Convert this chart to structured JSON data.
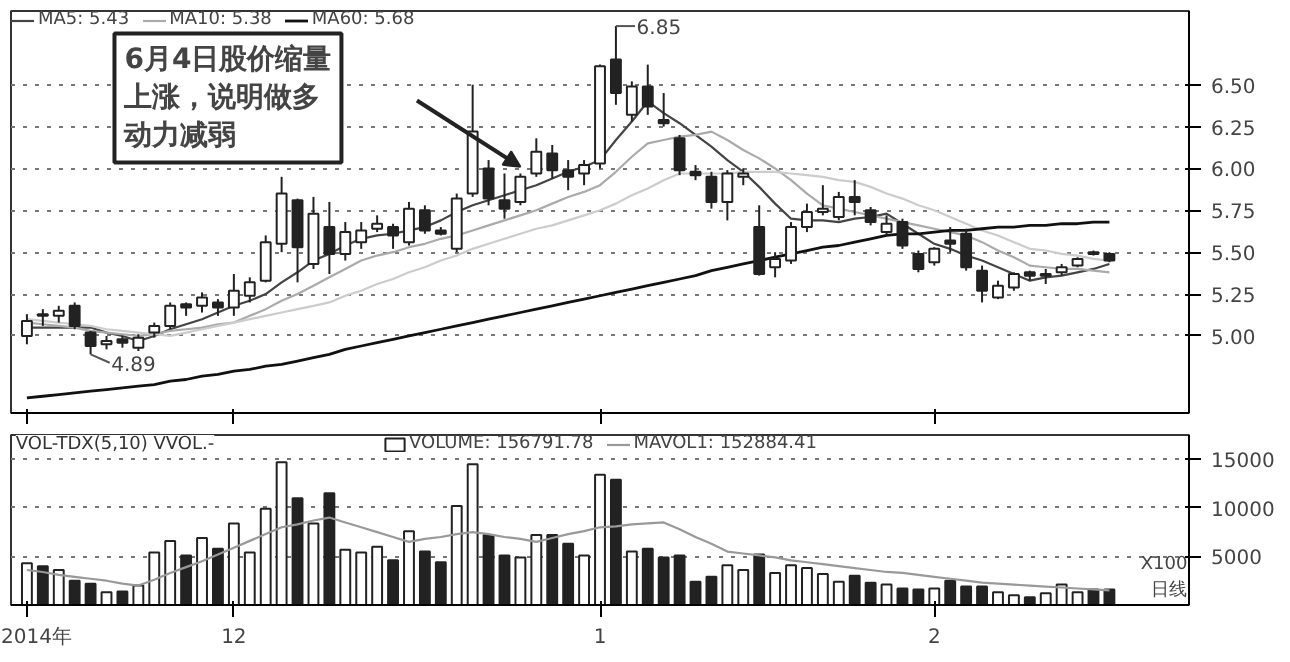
{
  "chart_data": [
    {
      "type": "candlestick",
      "ohlc": [
        [
          5.0,
          5.13,
          4.95,
          5.09
        ],
        [
          5.13,
          5.16,
          5.06,
          5.12
        ],
        [
          5.12,
          5.18,
          5.08,
          5.15
        ],
        [
          5.18,
          5.2,
          5.04,
          5.06
        ],
        [
          5.02,
          5.03,
          4.89,
          4.94
        ],
        [
          4.95,
          5.0,
          4.92,
          4.97
        ],
        [
          4.98,
          5.0,
          4.93,
          4.96
        ],
        [
          4.93,
          5.01,
          4.91,
          4.99
        ],
        [
          5.02,
          5.08,
          4.99,
          5.06
        ],
        [
          5.06,
          5.2,
          5.04,
          5.18
        ],
        [
          5.19,
          5.2,
          5.12,
          5.17
        ],
        [
          5.18,
          5.26,
          5.14,
          5.23
        ],
        [
          5.2,
          5.22,
          5.12,
          5.17
        ],
        [
          5.17,
          5.37,
          5.12,
          5.27
        ],
        [
          5.24,
          5.35,
          5.2,
          5.32
        ],
        [
          5.33,
          5.6,
          5.32,
          5.56
        ],
        [
          5.55,
          5.95,
          5.5,
          5.85
        ],
        [
          5.81,
          5.82,
          5.32,
          5.53
        ],
        [
          5.43,
          5.83,
          5.4,
          5.73
        ],
        [
          5.65,
          5.8,
          5.37,
          5.49
        ],
        [
          5.49,
          5.68,
          5.45,
          5.62
        ],
        [
          5.56,
          5.68,
          5.52,
          5.63
        ],
        [
          5.64,
          5.72,
          5.62,
          5.67
        ],
        [
          5.65,
          5.67,
          5.52,
          5.6
        ],
        [
          5.56,
          5.8,
          5.54,
          5.76
        ],
        [
          5.75,
          5.78,
          5.61,
          5.63
        ],
        [
          5.63,
          5.65,
          5.6,
          5.61
        ],
        [
          5.52,
          5.85,
          5.5,
          5.82
        ],
        [
          5.85,
          6.5,
          5.83,
          6.22
        ],
        [
          6.0,
          6.05,
          5.78,
          5.82
        ],
        [
          5.81,
          5.97,
          5.7,
          5.76
        ],
        [
          5.8,
          5.97,
          5.78,
          5.95
        ],
        [
          5.97,
          6.18,
          5.95,
          6.1
        ],
        [
          6.09,
          6.14,
          5.94,
          5.99
        ],
        [
          5.99,
          6.05,
          5.87,
          5.95
        ],
        [
          5.97,
          6.05,
          5.9,
          6.02
        ],
        [
          6.03,
          6.62,
          6.0,
          6.61
        ],
        [
          6.65,
          6.85,
          6.38,
          6.45
        ],
        [
          6.32,
          6.52,
          6.28,
          6.49
        ],
        [
          6.49,
          6.62,
          6.32,
          6.37
        ],
        [
          6.29,
          6.45,
          6.25,
          6.27
        ],
        [
          6.18,
          6.2,
          5.96,
          5.99
        ],
        [
          5.98,
          6.02,
          5.93,
          5.96
        ],
        [
          5.95,
          5.98,
          5.76,
          5.8
        ],
        [
          5.8,
          5.99,
          5.69,
          5.97
        ],
        [
          5.95,
          6.0,
          5.9,
          5.97
        ],
        [
          5.65,
          5.78,
          5.36,
          5.37
        ],
        [
          5.41,
          5.5,
          5.35,
          5.46
        ],
        [
          5.45,
          5.68,
          5.43,
          5.65
        ],
        [
          5.65,
          5.79,
          5.62,
          5.74
        ],
        [
          5.74,
          5.9,
          5.72,
          5.76
        ],
        [
          5.71,
          5.86,
          5.69,
          5.83
        ],
        [
          5.83,
          5.93,
          5.72,
          5.8
        ],
        [
          5.75,
          5.77,
          5.66,
          5.68
        ],
        [
          5.62,
          5.72,
          5.6,
          5.67
        ],
        [
          5.68,
          5.7,
          5.52,
          5.54
        ],
        [
          5.49,
          5.51,
          5.38,
          5.4
        ],
        [
          5.44,
          5.53,
          5.42,
          5.52
        ],
        [
          5.57,
          5.65,
          5.5,
          5.55
        ],
        [
          5.61,
          5.64,
          5.39,
          5.41
        ],
        [
          5.39,
          5.42,
          5.2,
          5.27
        ],
        [
          5.23,
          5.33,
          5.22,
          5.3
        ],
        [
          5.29,
          5.38,
          5.27,
          5.37
        ],
        [
          5.38,
          5.39,
          5.33,
          5.36
        ],
        [
          5.36,
          5.4,
          5.31,
          5.37
        ],
        [
          5.38,
          5.43,
          5.36,
          5.41
        ],
        [
          5.42,
          5.47,
          5.41,
          5.46
        ],
        [
          5.5,
          5.51,
          5.48,
          5.49
        ],
        [
          5.49,
          5.5,
          5.44,
          5.45
        ]
      ],
      "series": [
        {
          "name": "MA5: 5.43",
          "type": "line",
          "color": "#444444",
          "values": [
            5.05,
            5.05,
            5.05,
            5.05,
            5.05,
            5.02,
            5.0,
            4.97,
            5.0,
            5.04,
            5.07,
            5.1,
            5.14,
            5.18,
            5.21,
            5.25,
            5.32,
            5.38,
            5.45,
            5.49,
            5.54,
            5.58,
            5.6,
            5.61,
            5.63,
            5.65,
            5.69,
            5.74,
            5.78,
            5.81,
            5.84,
            5.87,
            5.9,
            5.94,
            5.98,
            6.01,
            6.05,
            6.17,
            6.28,
            6.4,
            6.33,
            6.27,
            6.2,
            6.13,
            6.05,
            5.98,
            5.89,
            5.79,
            5.7,
            5.69,
            5.69,
            5.68,
            5.7,
            5.71,
            5.73,
            5.67,
            5.61,
            5.55,
            5.52,
            5.48,
            5.45,
            5.41,
            5.37,
            5.33,
            5.35,
            5.36,
            5.38,
            5.4,
            5.43
          ]
        },
        {
          "name": "MA10: 5.38",
          "type": "line",
          "color": "#aaaaaa",
          "values": [
            5.08,
            5.07,
            5.06,
            5.05,
            5.03,
            5.02,
            5.01,
            5.0,
            5.01,
            5.03,
            5.04,
            5.05,
            5.07,
            5.08,
            5.12,
            5.16,
            5.21,
            5.25,
            5.3,
            5.35,
            5.4,
            5.45,
            5.48,
            5.5,
            5.53,
            5.55,
            5.58,
            5.6,
            5.63,
            5.66,
            5.69,
            5.72,
            5.75,
            5.79,
            5.83,
            5.86,
            5.9,
            5.98,
            6.07,
            6.15,
            6.17,
            6.19,
            6.2,
            6.22,
            6.17,
            6.11,
            6.06,
            6.0,
            5.93,
            5.85,
            5.78,
            5.76,
            5.74,
            5.72,
            5.7,
            5.68,
            5.66,
            5.64,
            5.62,
            5.6,
            5.56,
            5.51,
            5.47,
            5.42,
            5.41,
            5.4,
            5.4,
            5.39,
            5.38
          ]
        },
        {
          "type": "line",
          "color": "#cccccc",
          "values": [
            5.1,
            5.09,
            5.08,
            5.07,
            5.06,
            5.04,
            5.03,
            5.02,
            5.01,
            5.0,
            5.02,
            5.04,
            5.06,
            5.08,
            5.1,
            5.12,
            5.14,
            5.16,
            5.18,
            5.2,
            5.24,
            5.27,
            5.31,
            5.34,
            5.38,
            5.41,
            5.45,
            5.48,
            5.52,
            5.55,
            5.58,
            5.61,
            5.64,
            5.66,
            5.69,
            5.72,
            5.75,
            5.79,
            5.84,
            5.88,
            5.93,
            5.97,
            5.97,
            5.97,
            5.97,
            5.98,
            5.98,
            5.98,
            5.97,
            5.96,
            5.95,
            5.93,
            5.92,
            5.89,
            5.85,
            5.82,
            5.78,
            5.75,
            5.71,
            5.67,
            5.63,
            5.6,
            5.56,
            5.52,
            5.51,
            5.49,
            5.48,
            5.46,
            5.45
          ]
        },
        {
          "name": "MA60: 5.68",
          "type": "line",
          "color": "#111111",
          "values": [
            4.63,
            4.64,
            4.65,
            4.66,
            4.67,
            4.68,
            4.69,
            4.7,
            4.71,
            4.73,
            4.74,
            4.76,
            4.77,
            4.79,
            4.8,
            4.82,
            4.83,
            4.85,
            4.87,
            4.89,
            4.92,
            4.94,
            4.96,
            4.98,
            5.0,
            5.02,
            5.04,
            5.06,
            5.08,
            5.1,
            5.12,
            5.14,
            5.16,
            5.18,
            5.2,
            5.22,
            5.24,
            5.26,
            5.28,
            5.3,
            5.32,
            5.34,
            5.36,
            5.39,
            5.41,
            5.43,
            5.45,
            5.47,
            5.49,
            5.51,
            5.53,
            5.54,
            5.56,
            5.58,
            5.6,
            5.61,
            5.61,
            5.62,
            5.63,
            5.63,
            5.64,
            5.65,
            5.65,
            5.66,
            5.66,
            5.67,
            5.67,
            5.68,
            5.68
          ]
        }
      ],
      "categories": [
        "2014年",
        null,
        null,
        null,
        null,
        null,
        null,
        null,
        null,
        null,
        null,
        null,
        null,
        "12",
        null,
        null,
        null,
        null,
        null,
        null,
        null,
        null,
        null,
        null,
        null,
        null,
        null,
        null,
        null,
        null,
        null,
        null,
        null,
        null,
        null,
        null,
        "1",
        null,
        null,
        null,
        null,
        null,
        null,
        null,
        null,
        null,
        null,
        null,
        null,
        null,
        null,
        null,
        null,
        null,
        null,
        null,
        null,
        "2",
        null,
        null,
        null,
        null,
        null,
        null,
        null,
        null,
        null,
        null,
        null
      ],
      "ylim": [
        4.54,
        6.94
      ],
      "yticks": [
        {
          "value": 5.0,
          "label": "5.00"
        },
        {
          "value": 5.25,
          "label": "5.25"
        },
        {
          "value": 5.5,
          "label": "5.50"
        },
        {
          "value": 5.75,
          "label": "5.75"
        },
        {
          "value": 6.0,
          "label": "6.00"
        },
        {
          "value": 6.25,
          "label": "6.25"
        },
        {
          "value": 6.5,
          "label": "6.50"
        }
      ],
      "tick_labels": "y",
      "grid": "y",
      "legend": "top left",
      "annotations": [
        "6月4日股价缩量上涨，说明做多动力减弱",
        "6.85",
        "4.89"
      ]
    },
    {
      "type": "bar",
      "title": "VOL-TDX(5,10) VVOL.-",
      "series": [
        {
          "name": "VOLUME: 156791.78",
          "type": "bar",
          "values": [
            4300,
            4000,
            3600,
            2500,
            2200,
            1300,
            1400,
            2000,
            5400,
            6600,
            5100,
            6900,
            5800,
            8400,
            5400,
            9900,
            14700,
            11000,
            8400,
            11500,
            5700,
            5400,
            6000,
            4600,
            7600,
            5500,
            4400,
            10200,
            14500,
            7200,
            5100,
            4900,
            7200,
            7200,
            6300,
            5100,
            13400,
            12900,
            5500,
            5800,
            4900,
            5100,
            2400,
            2900,
            4100,
            3600,
            5200,
            3300,
            4100,
            3800,
            3200,
            2400,
            3000,
            2300,
            2100,
            1700,
            1600,
            1700,
            2500,
            1900,
            1900,
            1300,
            1000,
            800,
            1200,
            2100,
            1300,
            1600,
            1600
          ],
          "colors": [
            "#ffffff",
            "#222222",
            "#ffffff",
            "#222222",
            "#222222",
            "#ffffff",
            "#222222",
            "#ffffff",
            "#ffffff",
            "#ffffff",
            "#222222",
            "#ffffff",
            "#222222",
            "#ffffff",
            "#ffffff",
            "#ffffff",
            "#ffffff",
            "#222222",
            "#ffffff",
            "#222222",
            "#ffffff",
            "#ffffff",
            "#ffffff",
            "#222222",
            "#ffffff",
            "#222222",
            "#222222",
            "#ffffff",
            "#ffffff",
            "#222222",
            "#222222",
            "#ffffff",
            "#ffffff",
            "#222222",
            "#222222",
            "#ffffff",
            "#ffffff",
            "#222222",
            "#ffffff",
            "#222222",
            "#222222",
            "#222222",
            "#222222",
            "#222222",
            "#ffffff",
            "#ffffff",
            "#222222",
            "#ffffff",
            "#ffffff",
            "#ffffff",
            "#ffffff",
            "#ffffff",
            "#222222",
            "#222222",
            "#ffffff",
            "#222222",
            "#222222",
            "#ffffff",
            "#222222",
            "#222222",
            "#222222",
            "#ffffff",
            "#ffffff",
            "#222222",
            "#ffffff",
            "#ffffff",
            "#ffffff",
            "#222222",
            "#222222"
          ]
        },
        {
          "name": "MAVOL1: 152884.41",
          "type": "line",
          "color": "#999999",
          "values": [
            3600,
            3400,
            3100,
            2900,
            2700,
            2500,
            2200,
            2000,
            2600,
            3300,
            3900,
            4500,
            5200,
            5900,
            6600,
            7300,
            8000,
            8300,
            8700,
            9000,
            8500,
            8000,
            7500,
            7000,
            6500,
            6800,
            7000,
            7300,
            7500,
            7300,
            7000,
            6800,
            6500,
            6900,
            7300,
            7600,
            8000,
            8100,
            8300,
            8400,
            8500,
            7800,
            7000,
            6300,
            5500,
            5300,
            5100,
            4900,
            4600,
            4400,
            4200,
            4000,
            3800,
            3600,
            3400,
            3300,
            3100,
            2900,
            2700,
            2500,
            2300,
            2200,
            2100,
            2000,
            1900,
            1800,
            1700,
            1600,
            1500
          ]
        }
      ],
      "categories": [
        "2014年",
        null,
        null,
        null,
        null,
        null,
        null,
        null,
        null,
        null,
        null,
        null,
        null,
        "12",
        null,
        null,
        null,
        null,
        null,
        null,
        null,
        null,
        null,
        null,
        null,
        null,
        null,
        null,
        null,
        null,
        null,
        null,
        null,
        null,
        null,
        null,
        "1",
        null,
        null,
        null,
        null,
        null,
        null,
        null,
        null,
        null,
        null,
        null,
        null,
        null,
        null,
        null,
        null,
        null,
        null,
        null,
        null,
        "2",
        null,
        null,
        null,
        null,
        null,
        null,
        null,
        null,
        null,
        null,
        null
      ],
      "ylim": [
        0,
        17500
      ],
      "yticks": [
        5000,
        10000,
        15000
      ],
      "grid": "y",
      "legend": "top",
      "annotations": [
        "X100",
        "日线"
      ]
    }
  ]
}
